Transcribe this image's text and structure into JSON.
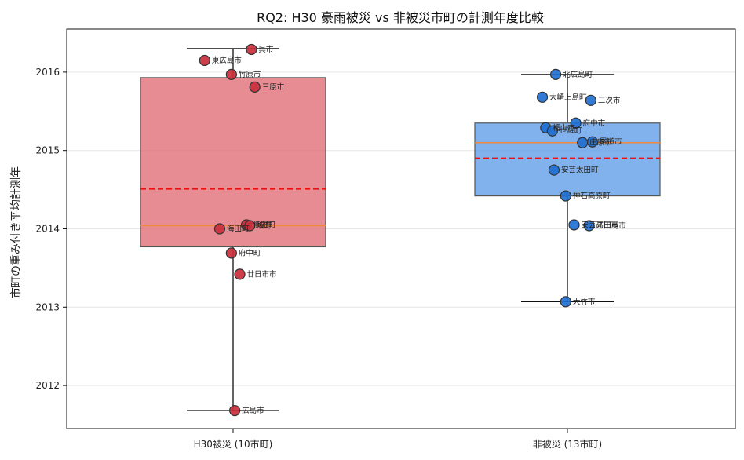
{
  "chart_data": {
    "type": "box",
    "title": "RQ2: H30 豪雨被災 vs 非被災市町の計測年度比較",
    "xlabel": "",
    "ylabel": "市町の重み付き平均計測年",
    "ylim": [
      2011.45,
      2016.55
    ],
    "yticks": [
      2012,
      2013,
      2014,
      2015,
      2016
    ],
    "grid": "horizontal",
    "colors": {
      "box_disaster": "#e06c73",
      "box_nondisaster": "#5d9ce8",
      "point_disaster": "#c82f3c",
      "point_nondisaster": "#1f6fd1",
      "median": "#f08a3a",
      "mean": "#ee1111",
      "grid": "#e6e6e6"
    },
    "groups": [
      {
        "category": "H30被災 (10市町)",
        "q1": 2013.77,
        "median": 2014.04,
        "q3": 2015.93,
        "mean": 2014.51,
        "whisker_low": 2011.68,
        "whisker_high": 2016.3,
        "points": [
          {
            "label": "呉市",
            "y": 2016.29,
            "jitter": 0.11
          },
          {
            "label": "東広島市",
            "y": 2016.15,
            "jitter": -0.17
          },
          {
            "label": "竹原市",
            "y": 2015.97,
            "jitter": -0.01
          },
          {
            "label": "三原市",
            "y": 2015.81,
            "jitter": 0.13
          },
          {
            "label": "熊野町",
            "y": 2014.05,
            "jitter": 0.08
          },
          {
            "label": "坂町",
            "y": 2014.04,
            "jitter": 0.1
          },
          {
            "label": "海田町",
            "y": 2014.0,
            "jitter": -0.08
          },
          {
            "label": "府中町",
            "y": 2013.69,
            "jitter": -0.01
          },
          {
            "label": "廿日市市",
            "y": 2013.42,
            "jitter": 0.04
          },
          {
            "label": "広島市",
            "y": 2011.68,
            "jitter": 0.01
          }
        ]
      },
      {
        "category": "非被災 (13市町)",
        "q1": 2014.42,
        "median": 2015.1,
        "q3": 2015.35,
        "mean": 2014.9,
        "whisker_low": 2013.07,
        "whisker_high": 2015.97,
        "points": [
          {
            "label": "北広島町",
            "y": 2015.97,
            "jitter": -0.07
          },
          {
            "label": "大崎上島町",
            "y": 2015.68,
            "jitter": -0.15
          },
          {
            "label": "三次市",
            "y": 2015.64,
            "jitter": 0.14
          },
          {
            "label": "府中市",
            "y": 2015.35,
            "jitter": 0.05
          },
          {
            "label": "福山市",
            "y": 2015.29,
            "jitter": -0.13
          },
          {
            "label": "世羅町",
            "y": 2015.25,
            "jitter": -0.09
          },
          {
            "label": "尾道市",
            "y": 2015.11,
            "jitter": 0.15
          },
          {
            "label": "庄原市",
            "y": 2015.1,
            "jitter": 0.09
          },
          {
            "label": "安芸太田町",
            "y": 2014.75,
            "jitter": -0.08
          },
          {
            "label": "神石高原町",
            "y": 2014.42,
            "jitter": -0.01
          },
          {
            "label": "安芸高田市",
            "y": 2014.05,
            "jitter": 0.04
          },
          {
            "label": "江田島市",
            "y": 2014.04,
            "jitter": 0.13
          },
          {
            "label": "大竹市",
            "y": 2013.07,
            "jitter": -0.01
          }
        ]
      }
    ]
  }
}
